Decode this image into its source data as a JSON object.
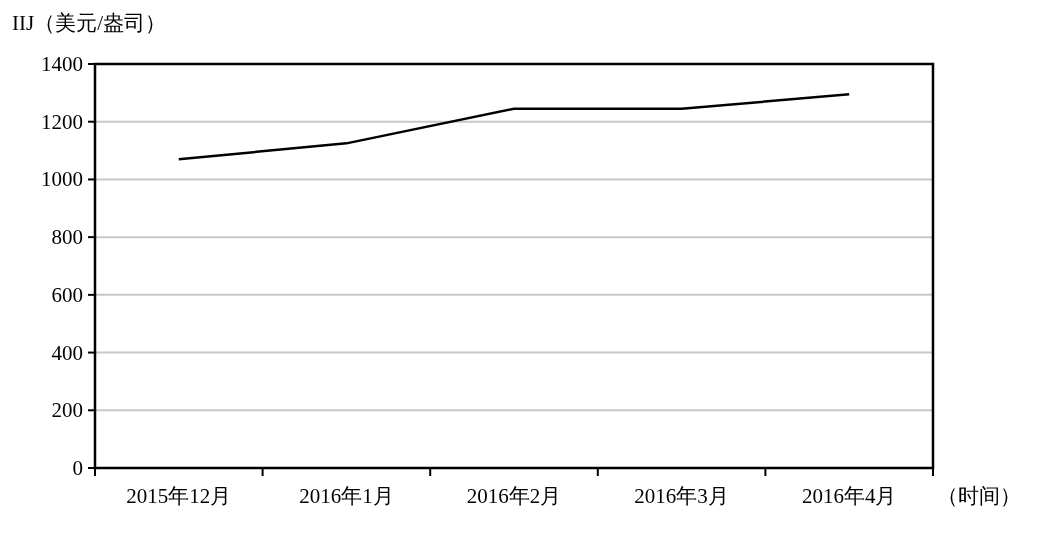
{
  "chart_data": {
    "type": "line",
    "ylabel": "IIJ（美元/盎司）",
    "xlabel": "（时间）",
    "categories": [
      "2015年12月",
      "2016年1月",
      "2016年2月",
      "2016年3月",
      "2016年4月"
    ],
    "series": [
      {
        "color": "#000000",
        "values": [
          1070,
          1125,
          1245,
          1245,
          1295
        ]
      }
    ],
    "ylim": [
      0,
      1400
    ],
    "yticks": [
      0,
      200,
      400,
      600,
      800,
      1000,
      1200,
      1400
    ],
    "grid": "y",
    "marker": "none",
    "line_style": "solid"
  }
}
